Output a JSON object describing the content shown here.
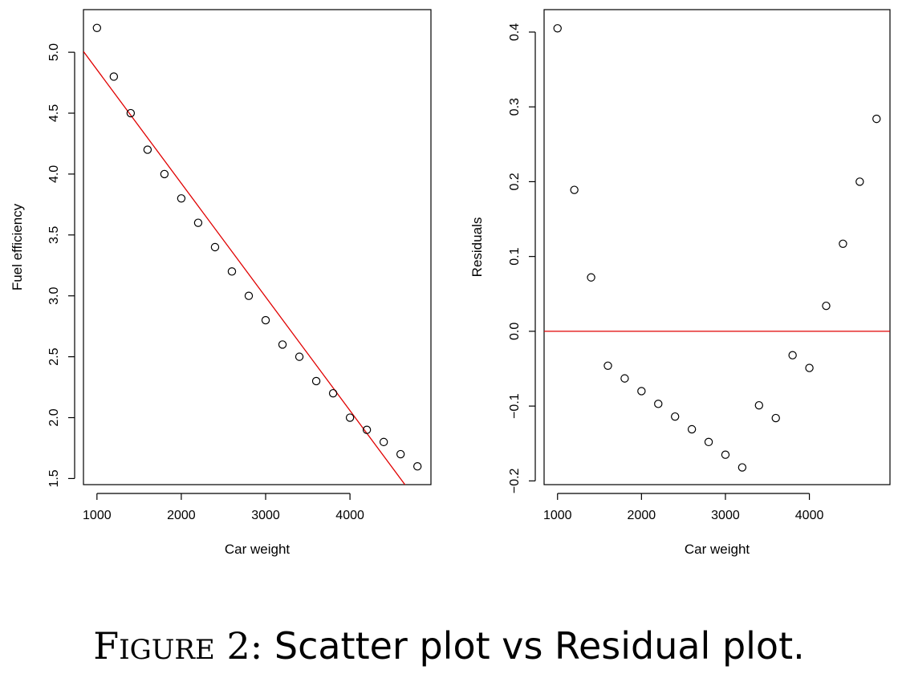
{
  "chart_data": [
    {
      "type": "scatter",
      "title": "",
      "xlabel": "Car weight",
      "ylabel": "Fuel efficiency",
      "xlim": [
        840,
        4960
      ],
      "ylim": [
        1.45,
        5.35
      ],
      "xticks": [
        1000,
        2000,
        3000,
        4000
      ],
      "yticks": [
        1.5,
        2.0,
        2.5,
        3.0,
        3.5,
        4.0,
        4.5,
        5.0
      ],
      "x_tick_labels": [
        "1000",
        "2000",
        "3000",
        "4000"
      ],
      "y_tick_labels": [
        "1.5",
        "2.0",
        "2.5",
        "3.0",
        "3.5",
        "4.0",
        "4.5",
        "5.0"
      ],
      "grid": false,
      "legend": "none",
      "point_color": "#000000",
      "points": {
        "x": [
          1000,
          1200,
          1400,
          1600,
          1800,
          2000,
          2200,
          2400,
          2600,
          2800,
          3000,
          3200,
          3400,
          3600,
          3800,
          4000,
          4200,
          4400,
          4600,
          4800
        ],
        "y": [
          5.2,
          4.8,
          4.5,
          4.2,
          4.0,
          3.8,
          3.6,
          3.4,
          3.2,
          3.0,
          2.8,
          2.6,
          2.5,
          2.3,
          2.2,
          2.0,
          1.9,
          1.8,
          1.7,
          1.6
        ]
      },
      "fit_line": {
        "intercept": 5.79,
        "slope": -0.000933,
        "color": "#e00000"
      }
    },
    {
      "type": "scatter",
      "title": "",
      "xlabel": "Car weight",
      "ylabel": "Residuals",
      "xlim": [
        840,
        4960
      ],
      "ylim": [
        -0.205,
        0.43
      ],
      "xticks": [
        1000,
        2000,
        3000,
        4000
      ],
      "yticks": [
        -0.2,
        -0.1,
        0.0,
        0.1,
        0.2,
        0.3,
        0.4
      ],
      "x_tick_labels": [
        "1000",
        "2000",
        "3000",
        "4000"
      ],
      "y_tick_labels": [
        "−0.2",
        "−0.1",
        "0.0",
        "0.1",
        "0.2",
        "0.3",
        "0.4"
      ],
      "grid": false,
      "legend": "none",
      "point_color": "#000000",
      "points": {
        "x": [
          1000,
          1200,
          1400,
          1600,
          1800,
          2000,
          2200,
          2400,
          2600,
          2800,
          3000,
          3200,
          3400,
          3600,
          3800,
          4000,
          4200,
          4400,
          4600,
          4800
        ],
        "y": [
          0.405,
          0.189,
          0.072,
          -0.046,
          -0.063,
          -0.08,
          -0.097,
          -0.114,
          -0.131,
          -0.148,
          -0.165,
          -0.182,
          -0.099,
          -0.116,
          -0.032,
          -0.049,
          0.034,
          0.117,
          0.2,
          0.284
        ]
      },
      "hline": {
        "y": 0.0,
        "color": "#e00000"
      }
    }
  ],
  "caption": {
    "figure_initial": "F",
    "figure_rest": "IGURE",
    "number": "2:",
    "text": "Scatter plot vs Residual plot."
  }
}
